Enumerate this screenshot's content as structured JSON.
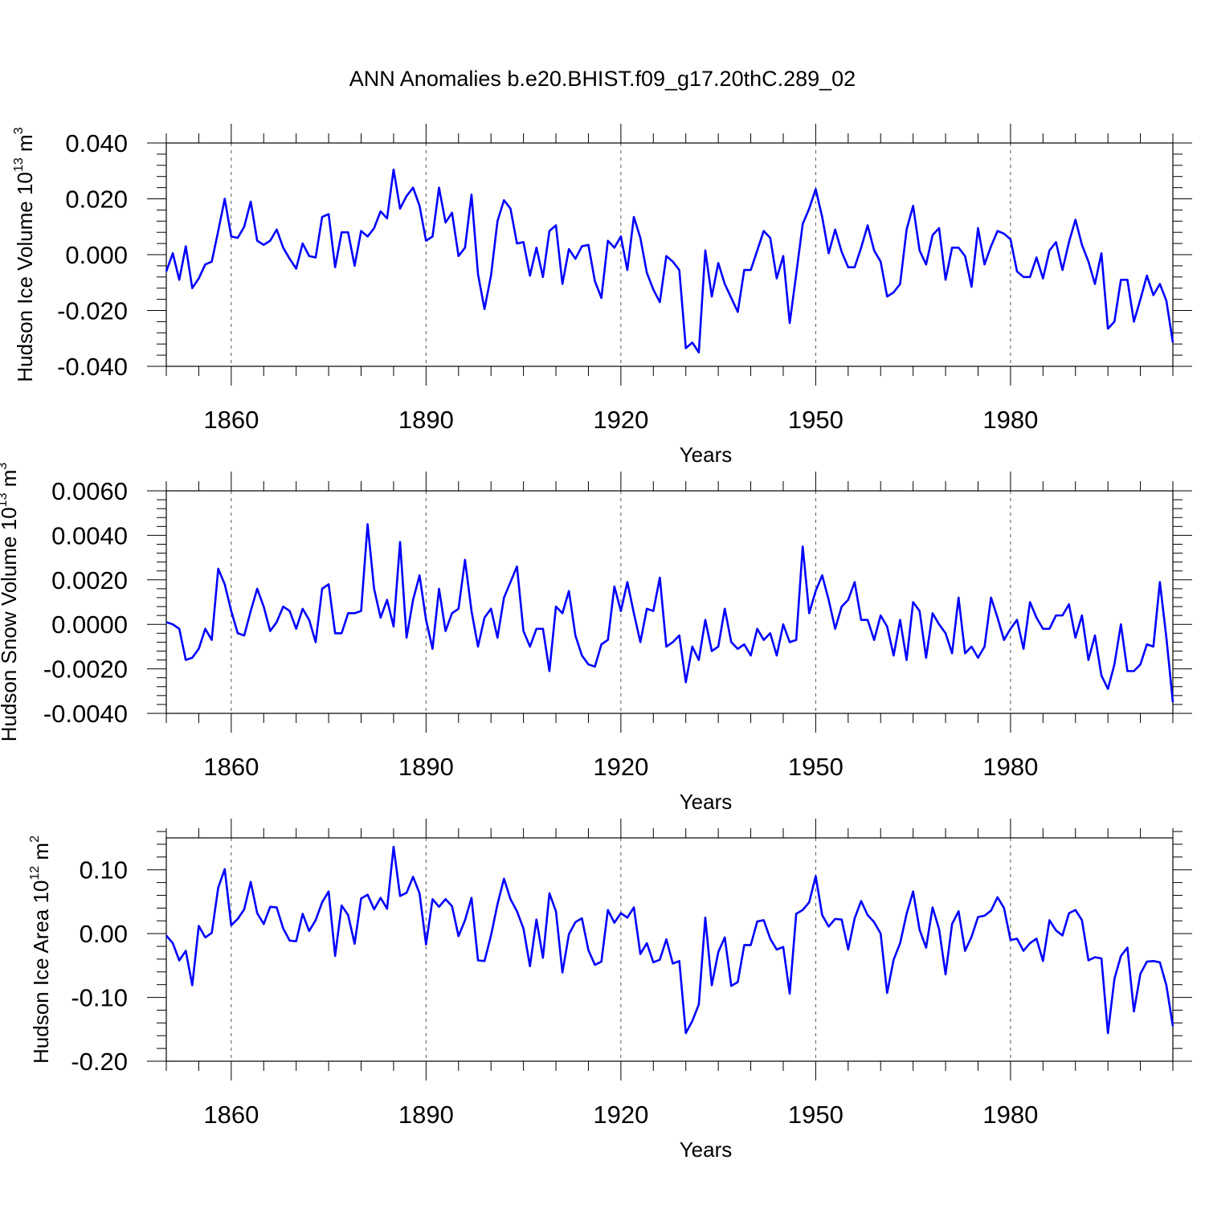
{
  "title": "ANN Anomalies b.e20.BHIST.f09_g17.20thC.289_02",
  "colors": {
    "line": "#0000ff",
    "axis": "#000000",
    "grid": "#555555"
  },
  "chart_data": [
    {
      "type": "line",
      "name": "ice-volume",
      "xlabel": "Years",
      "ylabel_main": "Hudson Ice Volume 10",
      "ylabel_exp": "13",
      "ylabel_unit": " m",
      "ylabel_unit_exp": "3",
      "xlim": [
        1850,
        2005
      ],
      "ylim": [
        -0.04,
        0.04
      ],
      "xticks": [
        1860,
        1890,
        1920,
        1950,
        1980
      ],
      "xtick_labels": [
        "1860",
        "1890",
        "1920",
        "1950",
        "1980"
      ],
      "yticks": [
        -0.04,
        -0.02,
        0.0,
        0.02,
        0.04
      ],
      "ytick_labels": [
        "-0.040",
        "-0.020",
        "0.000",
        "0.020",
        "0.040"
      ],
      "yminor_step": 0.004,
      "x_start": 1850,
      "values": [
        -0.006,
        0.0005,
        -0.009,
        0.003,
        -0.012,
        -0.0085,
        -0.0035,
        -0.0025,
        0.0085,
        0.02,
        0.0065,
        0.006,
        0.01,
        0.019,
        0.005,
        0.0035,
        0.005,
        0.009,
        0.0025,
        -0.0015,
        -0.005,
        0.004,
        -0.0005,
        -0.001,
        0.0135,
        0.0145,
        -0.0045,
        0.008,
        0.008,
        -0.004,
        0.0085,
        0.0065,
        0.0095,
        0.0155,
        0.013,
        0.0305,
        0.0165,
        0.021,
        0.024,
        0.0175,
        0.005,
        0.0065,
        0.024,
        0.0115,
        0.015,
        -0.0005,
        0.0025,
        0.0215,
        -0.007,
        -0.0195,
        -0.0075,
        0.012,
        0.0195,
        0.0165,
        0.004,
        0.0045,
        -0.0075,
        0.0025,
        -0.008,
        0.0085,
        0.0105,
        -0.0105,
        0.002,
        -0.0015,
        0.003,
        0.0035,
        -0.0095,
        -0.0155,
        0.005,
        0.0025,
        0.0065,
        -0.0055,
        0.0135,
        0.006,
        -0.0065,
        -0.0125,
        -0.017,
        -0.0005,
        -0.0025,
        -0.0055,
        -0.0335,
        -0.0315,
        -0.035,
        0.0015,
        -0.015,
        -0.003,
        -0.0105,
        -0.0155,
        -0.0205,
        -0.0055,
        -0.0055,
        0.0015,
        0.0085,
        0.006,
        -0.0085,
        -0.0005,
        -0.0245,
        -0.007,
        0.011,
        0.0165,
        0.0235,
        0.0135,
        0.0005,
        0.009,
        0.001,
        -0.0045,
        -0.0045,
        0.0025,
        0.0105,
        0.0015,
        -0.0025,
        -0.015,
        -0.0135,
        -0.0105,
        0.009,
        0.0175,
        0.0015,
        -0.0035,
        0.007,
        0.0095,
        -0.009,
        0.0025,
        0.0025,
        -0.0005,
        -0.0115,
        0.0095,
        -0.0035,
        0.003,
        0.0085,
        0.0075,
        0.0055,
        -0.006,
        -0.008,
        -0.008,
        -0.001,
        -0.0085,
        0.0015,
        0.0045,
        -0.0055,
        0.0045,
        0.0125,
        0.0035,
        -0.0025,
        -0.0105,
        0.0005,
        -0.0265,
        -0.024,
        -0.009,
        -0.009,
        -0.024,
        -0.016,
        -0.0075,
        -0.0145,
        -0.0105,
        -0.0165,
        -0.0315
      ]
    },
    {
      "type": "line",
      "name": "snow-volume",
      "xlabel": "Years",
      "ylabel_main": "Hudson Snow Volume 10",
      "ylabel_exp": "13",
      "ylabel_unit": " m",
      "ylabel_unit_exp": "3",
      "xlim": [
        1850,
        2005
      ],
      "ylim": [
        -0.004,
        0.006
      ],
      "xticks": [
        1860,
        1890,
        1920,
        1950,
        1980
      ],
      "xtick_labels": [
        "1860",
        "1890",
        "1920",
        "1950",
        "1980"
      ],
      "yticks": [
        -0.004,
        -0.002,
        0.0,
        0.002,
        0.004,
        0.006
      ],
      "ytick_labels": [
        "-0.0040",
        "-0.0020",
        "0.0000",
        "0.0020",
        "0.0040",
        "0.0060"
      ],
      "yminor_step": 0.0004,
      "x_start": 1850,
      "values": [
        0.0001,
        0.0,
        -0.0002,
        -0.0016,
        -0.0015,
        -0.0011,
        -0.0002,
        -0.0007,
        0.0025,
        0.0018,
        0.0006,
        -0.0004,
        -0.0005,
        0.0006,
        0.0016,
        0.0008,
        -0.0003,
        0.0001,
        0.0008,
        0.0006,
        -0.0002,
        0.0007,
        0.0002,
        -0.0008,
        0.0016,
        0.0018,
        -0.0004,
        -0.0004,
        0.0005,
        0.0005,
        0.0006,
        0.0045,
        0.0016,
        0.0003,
        0.0011,
        -0.0001,
        0.0037,
        -0.0006,
        0.0011,
        0.0022,
        0.0002,
        -0.0011,
        0.0016,
        -0.0003,
        0.0005,
        0.0007,
        0.0029,
        0.0006,
        -0.001,
        0.0003,
        0.0007,
        -0.0006,
        0.0012,
        0.0019,
        0.0026,
        -0.0003,
        -0.001,
        -0.0002,
        -0.0002,
        -0.0021,
        0.0008,
        0.0005,
        0.0015,
        -0.0005,
        -0.0014,
        -0.0018,
        -0.0019,
        -0.0009,
        -0.0007,
        0.0017,
        0.0006,
        0.0019,
        0.0005,
        -0.0008,
        0.0007,
        0.0006,
        0.0021,
        -0.001,
        -0.0008,
        -0.0005,
        -0.0026,
        -0.001,
        -0.0016,
        0.0002,
        -0.0012,
        -0.001,
        0.0007,
        -0.0008,
        -0.0011,
        -0.0009,
        -0.0014,
        -0.0002,
        -0.0007,
        -0.0004,
        -0.0014,
        0.0,
        -0.0008,
        -0.0007,
        0.0035,
        0.0005,
        0.0015,
        0.0022,
        0.0011,
        -0.0002,
        0.0008,
        0.0011,
        0.0019,
        0.0002,
        0.0002,
        -0.0007,
        0.0004,
        -0.0001,
        -0.0014,
        0.0002,
        -0.0016,
        0.001,
        0.0006,
        -0.0015,
        0.0005,
        0.0,
        -0.0004,
        -0.0013,
        0.0012,
        -0.0013,
        -0.001,
        -0.0015,
        -0.001,
        0.0012,
        0.0003,
        -0.0007,
        -0.0002,
        0.0002,
        -0.0011,
        0.001,
        0.0003,
        -0.0002,
        -0.0002,
        0.0004,
        0.0004,
        0.0009,
        -0.0006,
        0.0004,
        -0.0016,
        -0.0005,
        -0.0023,
        -0.0029,
        -0.0018,
        0.0,
        -0.0021,
        -0.0021,
        -0.0018,
        -0.0009,
        -0.001,
        0.0019,
        -0.0006,
        -0.0035
      ]
    },
    {
      "type": "line",
      "name": "ice-area",
      "xlabel": "Years",
      "ylabel_main": "Hudson Ice Area 10",
      "ylabel_exp": "12",
      "ylabel_unit": " m",
      "ylabel_unit_exp": "2",
      "xlim": [
        1850,
        2005
      ],
      "ylim": [
        -0.2,
        0.15
      ],
      "xticks": [
        1860,
        1890,
        1920,
        1950,
        1980
      ],
      "xtick_labels": [
        "1860",
        "1890",
        "1920",
        "1950",
        "1980"
      ],
      "yticks": [
        -0.2,
        -0.1,
        0.0,
        0.1
      ],
      "ytick_labels": [
        "-0.20",
        "-0.10",
        "0.00",
        "0.10"
      ],
      "yminor_step": 0.02,
      "x_start": 1850,
      "values": [
        -0.003,
        -0.015,
        -0.042,
        -0.027,
        -0.081,
        0.012,
        -0.006,
        0.001,
        0.072,
        0.101,
        0.013,
        0.023,
        0.038,
        0.081,
        0.032,
        0.015,
        0.042,
        0.041,
        0.008,
        -0.011,
        -0.012,
        0.031,
        0.004,
        0.021,
        0.049,
        0.066,
        -0.035,
        0.044,
        0.029,
        -0.016,
        0.055,
        0.061,
        0.038,
        0.056,
        0.039,
        0.136,
        0.059,
        0.064,
        0.089,
        0.063,
        -0.017,
        0.054,
        0.042,
        0.054,
        0.043,
        -0.004,
        0.021,
        0.056,
        -0.042,
        -0.043,
        -0.003,
        0.046,
        0.086,
        0.054,
        0.035,
        0.008,
        -0.051,
        0.022,
        -0.038,
        0.063,
        0.035,
        -0.061,
        -0.001,
        0.018,
        0.024,
        -0.026,
        -0.049,
        -0.044,
        0.037,
        0.017,
        0.032,
        0.025,
        0.041,
        -0.032,
        -0.015,
        -0.045,
        -0.041,
        -0.009,
        -0.047,
        -0.043,
        -0.156,
        -0.137,
        -0.111,
        0.025,
        -0.081,
        -0.029,
        -0.006,
        -0.082,
        -0.076,
        -0.018,
        -0.018,
        0.019,
        0.021,
        -0.008,
        -0.025,
        -0.021,
        -0.094,
        0.031,
        0.037,
        0.049,
        0.09,
        0.029,
        0.011,
        0.023,
        0.022,
        -0.025,
        0.024,
        0.051,
        0.029,
        0.018,
        0.0,
        -0.093,
        -0.041,
        -0.015,
        0.031,
        0.066,
        0.006,
        -0.022,
        0.041,
        0.007,
        -0.064,
        0.015,
        0.035,
        -0.027,
        -0.005,
        0.026,
        0.028,
        0.036,
        0.057,
        0.04,
        -0.01,
        -0.008,
        -0.027,
        -0.015,
        -0.008,
        -0.043,
        0.021,
        0.005,
        -0.003,
        0.032,
        0.037,
        0.021,
        -0.042,
        -0.037,
        -0.039,
        -0.156,
        -0.071,
        -0.035,
        -0.022,
        -0.122,
        -0.063,
        -0.044,
        -0.043,
        -0.045,
        -0.081,
        -0.145
      ]
    }
  ]
}
